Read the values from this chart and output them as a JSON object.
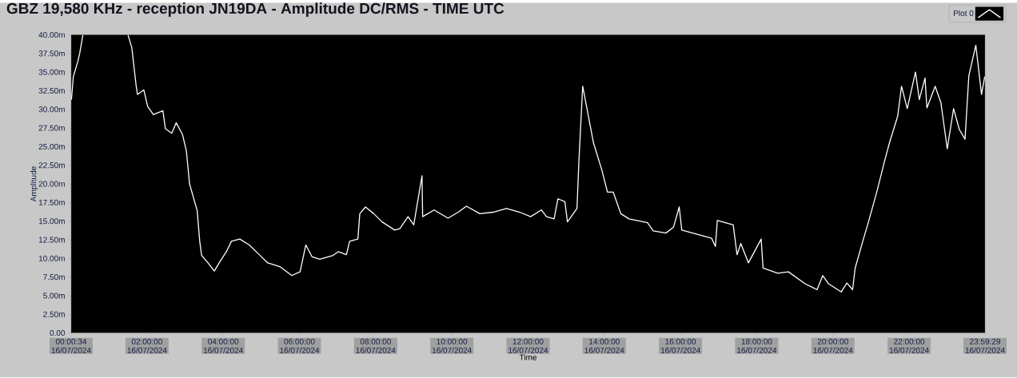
{
  "chart_data": {
    "type": "line",
    "title": "GBZ  19,580 KHz - reception JN19DA -  Amplitude DC/RMS   - TIME UTC",
    "xlabel": "Time",
    "ylabel": "Amplitude",
    "x": [
      "2024-07-16T00:01",
      "2024-07-16T00:04",
      "2024-07-16T00:11",
      "2024-07-16T00:14",
      "2024-07-16T00:19",
      "2024-07-16T01:00",
      "2024-07-16T01:30",
      "2024-07-16T01:36",
      "2024-07-16T01:43",
      "2024-07-16T01:45",
      "2024-07-16T01:55",
      "2024-07-16T02:01",
      "2024-07-16T02:10",
      "2024-07-16T02:25",
      "2024-07-16T02:29",
      "2024-07-16T02:39",
      "2024-07-16T02:46",
      "2024-07-16T02:56",
      "2024-07-16T03:02",
      "2024-07-16T03:07",
      "2024-07-16T03:19",
      "2024-07-16T03:23",
      "2024-07-16T03:26",
      "2024-07-16T03:36",
      "2024-07-16T03:46",
      "2024-07-16T03:55",
      "2024-07-16T04:05",
      "2024-07-16T04:13",
      "2024-07-16T04:26",
      "2024-07-16T04:41",
      "2024-07-16T04:58",
      "2024-07-16T05:10",
      "2024-07-16T05:29",
      "2024-07-16T05:48",
      "2024-07-16T06:01",
      "2024-07-16T06:10",
      "2024-07-16T06:20",
      "2024-07-16T06:32",
      "2024-07-16T06:53",
      "2024-07-16T07:01",
      "2024-07-16T07:14",
      "2024-07-16T07:19",
      "2024-07-16T07:32",
      "2024-07-16T07:35",
      "2024-07-16T07:44",
      "2024-07-16T07:57",
      "2024-07-16T08:10",
      "2024-07-16T08:30",
      "2024-07-16T08:38",
      "2024-07-16T08:51",
      "2024-07-16T09:00",
      "2024-07-16T09:13",
      "2024-07-16T09:14",
      "2024-07-16T09:32",
      "2024-07-16T09:54",
      "2024-07-16T10:10",
      "2024-07-16T10:23",
      "2024-07-16T10:44",
      "2024-07-16T11:05",
      "2024-07-16T11:26",
      "2024-07-16T11:47",
      "2024-07-16T12:04",
      "2024-07-16T12:21",
      "2024-07-16T12:29",
      "2024-07-16T12:41",
      "2024-07-16T12:47",
      "2024-07-16T12:58",
      "2024-07-16T13:02",
      "2024-07-16T13:17",
      "2024-07-16T13:20",
      "2024-07-16T13:26",
      "2024-07-16T13:43",
      "2024-07-16T13:56",
      "2024-07-16T14:05",
      "2024-07-16T14:14",
      "2024-07-16T14:26",
      "2024-07-16T14:39",
      "2024-07-16T15:08",
      "2024-07-16T15:17",
      "2024-07-16T15:37",
      "2024-07-16T15:49",
      "2024-07-16T15:58",
      "2024-07-16T16:02",
      "2024-07-16T16:49",
      "2024-07-16T16:55",
      "2024-07-16T16:58",
      "2024-07-16T17:23",
      "2024-07-16T17:29",
      "2024-07-16T17:35",
      "2024-07-16T17:47",
      "2024-07-16T18:07",
      "2024-07-16T18:10",
      "2024-07-16T18:33",
      "2024-07-16T18:50",
      "2024-07-16T19:16",
      "2024-07-16T19:35",
      "2024-07-16T19:44",
      "2024-07-16T19:53",
      "2024-07-16T20:13",
      "2024-07-16T20:22",
      "2024-07-16T20:31",
      "2024-07-16T20:35",
      "2024-07-16T20:47",
      "2024-07-16T20:56",
      "2024-07-16T21:09",
      "2024-07-16T21:22",
      "2024-07-16T21:29",
      "2024-07-16T21:42",
      "2024-07-16T21:48",
      "2024-07-16T21:57",
      "2024-07-16T22:10",
      "2024-07-16T22:16",
      "2024-07-16T22:25",
      "2024-07-16T22:28",
      "2024-07-16T22:41",
      "2024-07-16T22:50",
      "2024-07-16T23:00",
      "2024-07-16T23:10",
      "2024-07-16T23:19",
      "2024-07-16T23:28",
      "2024-07-16T23:34",
      "2024-07-16T23:45",
      "2024-07-16T23:54",
      "2024-07-16T23:59"
    ],
    "series": [
      {
        "name": "Plot 0",
        "color": "#ffffff",
        "values": [
          31.3,
          34.4,
          36.4,
          37.5,
          40,
          null,
          40,
          38.3,
          33.1,
          32,
          32.6,
          30.4,
          29.3,
          29.8,
          27.4,
          26.8,
          28.2,
          26.6,
          24.4,
          20.0,
          16.4,
          12.3,
          10.4,
          9.4,
          8.3,
          9.6,
          10.9,
          12.3,
          12.6,
          11.8,
          10.4,
          9.4,
          8.9,
          7.7,
          8.2,
          11.8,
          10.2,
          9.9,
          10.4,
          10.9,
          10.5,
          12.3,
          12.6,
          16.0,
          16.9,
          16.0,
          14.9,
          13.8,
          14.0,
          15.6,
          14.5,
          21.1,
          15.6,
          16.5,
          15.4,
          16.2,
          17.0,
          16.0,
          16.2,
          16.7,
          16.2,
          15.6,
          16.5,
          15.6,
          15.3,
          18.0,
          17.6,
          14.9,
          16.7,
          23.0,
          33.1,
          25.5,
          21.9,
          18.9,
          18.9,
          16.0,
          15.3,
          14.8,
          13.7,
          13.4,
          14.2,
          16.9,
          13.8,
          12.7,
          11.6,
          15.1,
          14.5,
          10.5,
          12.0,
          9.4,
          12.6,
          8.7,
          8.0,
          8.2,
          6.6,
          5.8,
          7.7,
          6.6,
          5.5,
          6.7,
          5.8,
          8.7,
          12.3,
          14.9,
          18.9,
          23.3,
          25.5,
          29.1,
          33.1,
          30.1,
          35.0,
          31.3,
          34.2,
          30.2,
          33.1,
          30.9,
          24.7,
          30.1,
          27.3,
          26.0,
          34.5,
          38.6,
          32.0,
          34.4
        ]
      }
    ],
    "xlim": [
      "2024-07-16T00:00:34",
      "2024-07-16T23:59:29"
    ],
    "ylim": [
      0,
      40
    ],
    "xticks": [
      {
        "value": "2024-07-16T00:00:34",
        "label": "00:00:34 16/07/2024"
      },
      {
        "value": "2024-07-16T02:00",
        "label": "02:00:00 16/07/2024"
      },
      {
        "value": "2024-07-16T04:00",
        "label": "04:00:00 16/07/2024"
      },
      {
        "value": "2024-07-16T06:00",
        "label": "06:00:00 16/07/2024"
      },
      {
        "value": "2024-07-16T08:00",
        "label": "08:00:00 16/07/2024"
      },
      {
        "value": "2024-07-16T10:00",
        "label": "10:00:00 16/07/2024"
      },
      {
        "value": "2024-07-16T12:00",
        "label": "12:00:00 16/07/2024"
      },
      {
        "value": "2024-07-16T14:00",
        "label": "14:00:00 16/07/2024"
      },
      {
        "value": "2024-07-16T16:00",
        "label": "16:00:00 16/07/2024"
      },
      {
        "value": "2024-07-16T18:00",
        "label": "18:00:00 16/07/2024"
      },
      {
        "value": "2024-07-16T20:00",
        "label": "20:00:00 16/07/2024"
      },
      {
        "value": "2024-07-16T22:00",
        "label": "22:00:00 16/07/2024"
      },
      {
        "value": "2024-07-16T23:59:29",
        "label": "23:59:29 16/07/2024"
      }
    ],
    "yticks": [
      {
        "value": 0,
        "label": "0.00"
      },
      {
        "value": 2.5,
        "label": "2.50m"
      },
      {
        "value": 5,
        "label": "5.00m"
      },
      {
        "value": 7.5,
        "label": "7.50m"
      },
      {
        "value": 10,
        "label": "10.00m"
      },
      {
        "value": 12.5,
        "label": "12.50m"
      },
      {
        "value": 15,
        "label": "15.00m"
      },
      {
        "value": 17.5,
        "label": "17.50m"
      },
      {
        "value": 20,
        "label": "20.00m"
      },
      {
        "value": 22.5,
        "label": "22.50m"
      },
      {
        "value": 25,
        "label": "25.00m"
      },
      {
        "value": 27.5,
        "label": "27.50m"
      },
      {
        "value": 30,
        "label": "30.00m"
      },
      {
        "value": 32.5,
        "label": "32.50m"
      },
      {
        "value": 35,
        "label": "35.00m"
      },
      {
        "value": 37.5,
        "label": "37.50m"
      },
      {
        "value": 40,
        "label": "40.00m"
      }
    ],
    "legend": "top right"
  }
}
